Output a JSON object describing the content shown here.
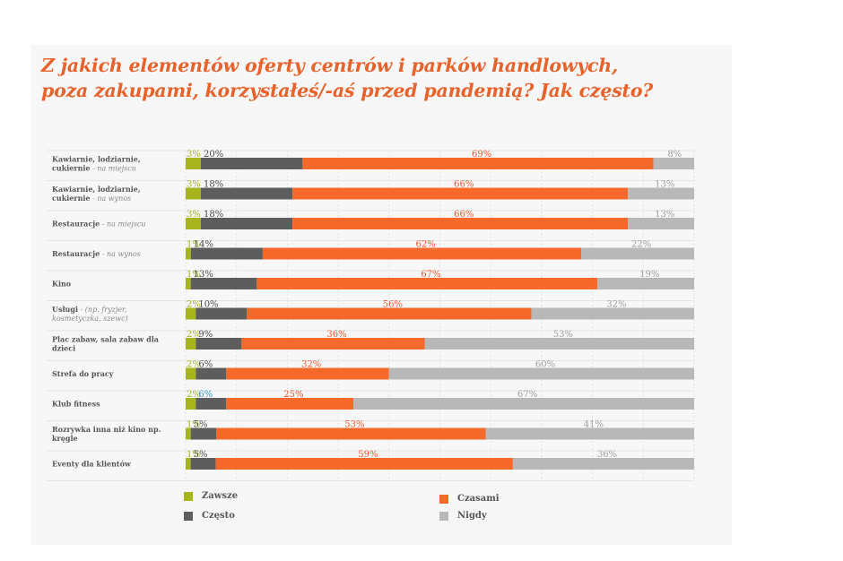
{
  "title_lines": [
    "Z jakich elementów oferty centrów i parków handlowych,",
    "poza zakupami, korzystałeś/-aś przed pandemią? Jak często?"
  ],
  "colors": {
    "zawsze": "#a6b51e",
    "czesto": "#5d5d5d",
    "czasami": "#f6692b",
    "nigdy": "#b8b8b8",
    "label_zawsze": "#a6b51e",
    "label_czesto": "#4a4a4a",
    "label_czasami": "#f0552b",
    "label_nigdy": "#9f9f9f",
    "label_highlight": "#2f96c7",
    "title": "#e8622c"
  },
  "legend": {
    "zawsze": "Zawsze",
    "czesto": "Często",
    "czasami": "Czasami",
    "nigdy": "Nigdy"
  },
  "chart_data": {
    "type": "bar",
    "orientation": "horizontal",
    "stacked": true,
    "normalized": true,
    "grid": true,
    "legend_position": "bottom",
    "categories": [
      {
        "main": "Kawiarnie, lodziarnie, cukiernie",
        "note": "na miejscu"
      },
      {
        "main": "Kawiarnie, lodziarnie, cukiernie",
        "note": "na wynos"
      },
      {
        "main": "Restauracje",
        "note": "na miejscu"
      },
      {
        "main": "Restauracje",
        "note": "na wynos"
      },
      {
        "main": "Kino",
        "note": ""
      },
      {
        "main": "Usługi",
        "note": "(np. fryzjer, kosmetyczka, szewc)"
      },
      {
        "main": "Plac zabaw, sala zabaw dla dzieci",
        "note": ""
      },
      {
        "main": "Strefa do pracy",
        "note": ""
      },
      {
        "main": "Klub fitness",
        "note": ""
      },
      {
        "main": "Rozrywka inna niż kino np. kręgle",
        "note": ""
      },
      {
        "main": "Eventy dla klientów",
        "note": ""
      }
    ],
    "series": [
      {
        "name": "Zawsze",
        "key": "zawsze",
        "values": [
          3,
          3,
          3,
          1,
          1,
          2,
          2,
          2,
          2,
          1,
          1
        ]
      },
      {
        "name": "Często",
        "key": "czesto",
        "values": [
          20,
          18,
          18,
          14,
          13,
          10,
          9,
          6,
          6,
          5,
          5
        ]
      },
      {
        "name": "Czasami",
        "key": "czasami",
        "values": [
          69,
          66,
          66,
          62,
          67,
          56,
          36,
          32,
          25,
          53,
          59
        ]
      },
      {
        "name": "Nigdy",
        "key": "nigdy",
        "values": [
          8,
          13,
          13,
          22,
          19,
          32,
          53,
          60,
          67,
          41,
          36
        ]
      }
    ],
    "value_labels": [
      [
        "3%",
        "20%",
        "69%",
        "8%"
      ],
      [
        "3%",
        "18%",
        "66%",
        "13%"
      ],
      [
        "3%",
        "18%",
        "66%",
        "13%"
      ],
      [
        "1%",
        "14%",
        "62%",
        "22%"
      ],
      [
        "1%",
        "13%",
        "67%",
        "19%"
      ],
      [
        "2%",
        "10%",
        "56%",
        "32%"
      ],
      [
        "2%",
        "9%",
        "36%",
        "53%"
      ],
      [
        "2%",
        "6%",
        "32%",
        "60%"
      ],
      [
        "2%",
        "6%",
        "25%",
        "67%"
      ],
      [
        "1%",
        "5%",
        "53%",
        "41%"
      ],
      [
        "1%",
        "5%",
        "59%",
        "36%"
      ]
    ],
    "highlight_label": {
      "row": 8,
      "series": 1
    }
  }
}
